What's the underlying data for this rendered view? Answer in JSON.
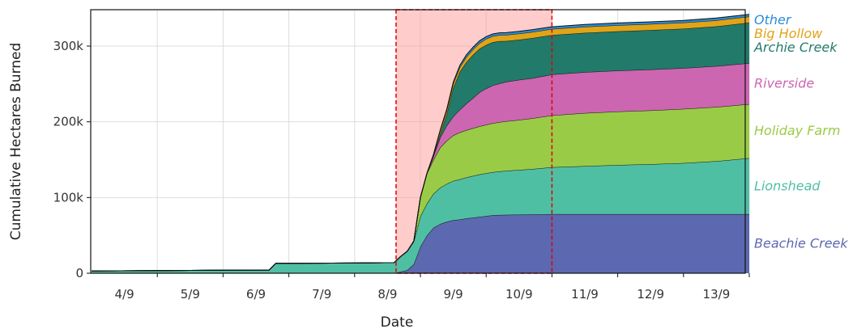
{
  "chart_data": {
    "type": "area",
    "stacked": true,
    "xlabel": "Date",
    "ylabel": "Cumulative Hectares Burned",
    "x_tick_labels": [
      "4/9",
      "5/9",
      "6/9",
      "7/9",
      "8/9",
      "9/9",
      "10/9",
      "11/9",
      "12/9",
      "13/9"
    ],
    "y_ticks": [
      0,
      100000,
      200000,
      300000
    ],
    "y_tick_labels": [
      "0",
      "100k",
      "200k",
      "300k"
    ],
    "xlim_days": [
      3,
      13
    ],
    "ylim": [
      0,
      360000
    ],
    "grid": true,
    "legend_placement": "right",
    "highlight": {
      "x_start_day": 7.63,
      "x_end_day": 10,
      "fill": "#ff9999",
      "border": "#dd0000"
    },
    "x": [
      3.0,
      4.0,
      5.0,
      5.7,
      5.8,
      7.0,
      7.6,
      7.7,
      7.8,
      7.9,
      8.0,
      8.1,
      8.2,
      8.3,
      8.4,
      8.5,
      8.6,
      8.7,
      8.8,
      8.9,
      9.0,
      9.1,
      9.2,
      9.3,
      9.5,
      9.7,
      10.0,
      10.5,
      11.0,
      11.5,
      12.0,
      12.5,
      13.0
    ],
    "series": [
      {
        "name": "Beachie Creek",
        "color": "#5c68b0",
        "values": [
          0,
          0,
          0,
          0,
          0,
          0,
          0,
          2000,
          4000,
          12000,
          35000,
          50000,
          60000,
          65000,
          68000,
          70000,
          71000,
          72500,
          73500,
          74500,
          75500,
          76500,
          77000,
          77200,
          77400,
          77600,
          78000,
          78000,
          78000,
          78000,
          78000,
          78000,
          78000
        ]
      },
      {
        "name": "Lionshead",
        "color": "#4fbfa4",
        "values": [
          3000,
          3500,
          4000,
          4200,
          13000,
          13500,
          14000,
          20000,
          25000,
          30000,
          40000,
          42000,
          45000,
          48000,
          50000,
          52000,
          53000,
          54000,
          55000,
          56000,
          56500,
          57000,
          57500,
          58000,
          59000,
          60000,
          62000,
          63500,
          65000,
          66000,
          67500,
          70000,
          74000
        ]
      },
      {
        "name": "Holiday Farm",
        "color": "#9acb47",
        "values": [
          0,
          0,
          0,
          0,
          0,
          0,
          0,
          0,
          0,
          500,
          25000,
          40000,
          45000,
          53000,
          57000,
          60000,
          62000,
          62500,
          63000,
          63500,
          64000,
          64500,
          65000,
          65500,
          66000,
          67000,
          68500,
          70000,
          70500,
          71000,
          71500,
          71500,
          71500
        ]
      },
      {
        "name": "Riverside",
        "color": "#cc66b0",
        "values": [
          0,
          0,
          0,
          0,
          0,
          0,
          0,
          0,
          0,
          0,
          0,
          0,
          5000,
          13000,
          20000,
          25000,
          30000,
          35000,
          40000,
          45000,
          48000,
          50000,
          51000,
          52000,
          53000,
          53000,
          54000,
          54000,
          54000,
          54000,
          54000,
          54000,
          54000
        ]
      },
      {
        "name": "Archie Creek",
        "color": "#227a6a",
        "values": [
          0,
          0,
          0,
          0,
          0,
          0,
          0,
          0,
          0,
          0,
          0,
          0,
          0,
          5000,
          15000,
          38000,
          50000,
          55000,
          57000,
          57500,
          57500,
          57000,
          56000,
          54000,
          53000,
          53000,
          52000,
          52000,
          52000,
          52000,
          52000,
          52500,
          53500
        ]
      },
      {
        "name": "Big Hollow",
        "color": "#e0a419",
        "values": [
          0,
          0,
          0,
          0,
          0,
          0,
          0,
          0,
          0,
          0,
          0,
          0,
          2000,
          4000,
          5000,
          5500,
          6000,
          6500,
          7000,
          7500,
          8000,
          8000,
          8000,
          8000,
          8000,
          8000,
          8000,
          8000,
          8000,
          8000,
          8000,
          8000,
          8000
        ]
      },
      {
        "name": "Other",
        "color": "#2b8cd6",
        "values": [
          0,
          0,
          0,
          0,
          0,
          0,
          0,
          0,
          0,
          0,
          0,
          0,
          0,
          1000,
          1500,
          2000,
          2500,
          3000,
          3000,
          3000,
          3000,
          3000,
          3000,
          3000,
          3000,
          3000,
          3000,
          3000,
          3000,
          3000,
          3000,
          3000,
          3000
        ]
      }
    ]
  }
}
